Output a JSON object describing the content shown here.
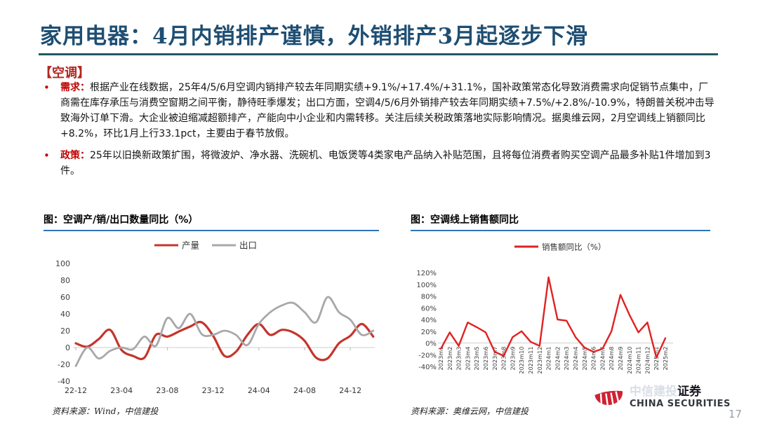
{
  "slide": {
    "title": "家用电器：4月内销排产谨慎，外销排产3月起逐步下滑",
    "section_tag": "【空调】",
    "bullets": [
      {
        "keyword": "需求：",
        "text": "根据产业在线数据，25年4/5/6月空调内销排产较去年同期实绩+9.1%/+17.4%/+31.1%，国补政策常态化导致消费需求向促销节点集中，厂商需在库存承压与消费空窗期之间平衡，静待旺季爆发；出口方面，空调4/5/6月外销排产较去年同期实绩+7.5%/+2.8%/-10.9%，特朗普关税冲击导致海外订单下滑。大企业被迫缩减超额排产，产能向中小企业和内需转移。关注后续关税政策落地实际影响情况。据奥维云网，2月空调线上销额同比+8.2%，环比1月上行33.1pct，主要由于春节放假。"
      },
      {
        "keyword": "政策：",
        "text": "25年以旧换新政策扩围，将微波炉、净水器、洗碗机、电饭煲等4类家电产品纳入补贴范围，且将每位消费者购买空调产品最多补贴1件增加到3件。"
      }
    ],
    "sources": {
      "left": "资料来源：Wind，中信建投",
      "right": "资料来源：奥维云网，中信建投"
    },
    "logo": {
      "cn_faded": "中信建投",
      "cn_dark": "证券",
      "en": "CHINA SECURITIES"
    },
    "page_number": "17",
    "colors": {
      "accent_navy": "#1E4E72",
      "rule_teal": "#1F5964",
      "accent_red": "#C00000",
      "chart_title_underline": "#2E74B5"
    }
  },
  "chart_data": [
    {
      "type": "line",
      "title": "图：空调产/销/出口数量同比（%）",
      "x": [
        "22-12",
        "23-01",
        "23-02",
        "23-03",
        "23-04",
        "23-05",
        "23-06",
        "23-07",
        "23-08",
        "23-09",
        "23-10",
        "23-11",
        "23-12",
        "24-01",
        "24-02",
        "24-03",
        "24-04",
        "24-05",
        "24-06",
        "24-07",
        "24-08",
        "24-09",
        "24-10",
        "24-11",
        "24-12",
        "25-01",
        "25-02"
      ],
      "x_tick_labels": [
        "22-12",
        "23-04",
        "23-08",
        "23-12",
        "24-04",
        "24-08",
        "24-12"
      ],
      "series": [
        {
          "name": "产量",
          "color": "#C5342C",
          "values": [
            5,
            1,
            10,
            21,
            -3,
            -10,
            -12,
            15,
            13,
            19,
            25,
            30,
            14,
            -10,
            -5,
            15,
            28,
            15,
            21,
            18,
            8,
            -12,
            -13,
            5,
            14,
            28,
            13
          ]
        },
        {
          "name": "出口",
          "color": "#A8A8A8",
          "values": [
            -22,
            0,
            -13,
            -4,
            0,
            -2,
            13,
            2,
            35,
            23,
            40,
            16,
            15,
            20,
            15,
            3,
            28,
            42,
            50,
            53,
            42,
            30,
            60,
            42,
            33,
            15,
            20
          ]
        }
      ],
      "ylim": [
        -40,
        100
      ],
      "yticks": [
        100,
        80,
        60,
        40,
        20,
        0,
        -20,
        -40
      ],
      "grid": "zero-line-only",
      "legend_position": "top",
      "line_style": "smooth"
    },
    {
      "type": "line",
      "title": "图：空调线上销售额同比",
      "x": [
        "2023m1",
        "2023m2",
        "2023m3",
        "2023m4",
        "2023m5",
        "2023m6",
        "2023m7",
        "2023m8",
        "2023m9",
        "2023m10",
        "2023m11",
        "2023m12",
        "2024m1",
        "2024m2",
        "2024m3",
        "2024m4",
        "2024m5",
        "2024m6",
        "2024m7",
        "2024m8",
        "2024m9",
        "2024m10",
        "2024m11",
        "2024m12",
        "2025m1",
        "2025m2"
      ],
      "series": [
        {
          "name": "销售额同比（%）",
          "color": "#E02222",
          "values": [
            -10,
            18,
            -5,
            35,
            27,
            18,
            -15,
            -22,
            10,
            20,
            2,
            -5,
            112,
            40,
            38,
            10,
            -8,
            -15,
            -10,
            20,
            82,
            48,
            18,
            35,
            -25,
            8.2
          ]
        }
      ],
      "ylim": [
        -40,
        120
      ],
      "yticks": [
        120,
        100,
        80,
        60,
        40,
        20,
        0,
        -20,
        -40
      ],
      "ytick_format": "percent",
      "grid": "zero-line-only",
      "legend_position": "top",
      "line_style": "straight"
    }
  ]
}
